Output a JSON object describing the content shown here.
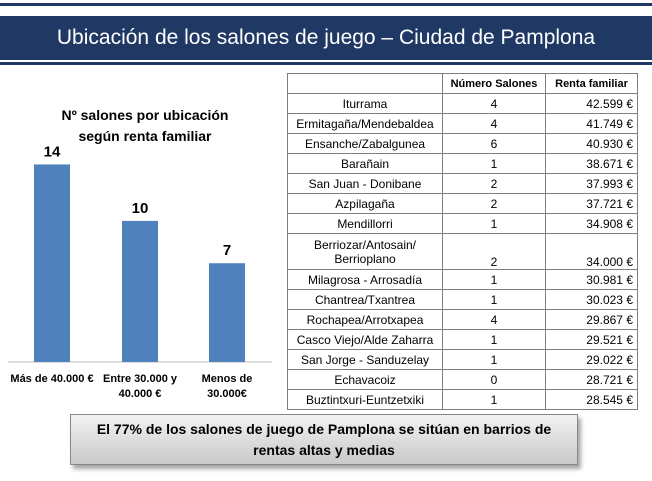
{
  "header": {
    "title": "Ubicación de los salones de juego – Ciudad de Pamplona"
  },
  "chart_data": {
    "type": "bar",
    "title": "Nº salones por ubicación según renta familiar",
    "categories": [
      "Más de 40.000 €",
      "Entre 30.000 y 40.000 €",
      "Menos de 30.000€"
    ],
    "values": [
      14,
      10,
      7
    ],
    "ylim": [
      0,
      16
    ],
    "xlabel": "",
    "ylabel": "",
    "color": "#4f81bd"
  },
  "table": {
    "headers": [
      "",
      "Número Salones",
      "Renta familiar"
    ],
    "rows": [
      [
        "Iturrama",
        "4",
        "42.599 €"
      ],
      [
        "Ermitagaña/Mendebaldea",
        "4",
        "41.749 €"
      ],
      [
        "Ensanche/Zabalgunea",
        "6",
        "40.930 €"
      ],
      [
        "Barañain",
        "1",
        "38.671 €"
      ],
      [
        "San Juan - Donibane",
        "2",
        "37.993 €"
      ],
      [
        "Azpilagaña",
        "2",
        "37.721 €"
      ],
      [
        "Mendillorri",
        "1",
        "34.908 €"
      ],
      [
        "Berriozar/Antosain/ Berrioplano",
        "2",
        "34.000 €"
      ],
      [
        "Milagrosa - Arrosadía",
        "1",
        "30.981 €"
      ],
      [
        "Chantrea/Txantrea",
        "1",
        "30.023 €"
      ],
      [
        "Rochapea/Arrotxapea",
        "4",
        "29.867 €"
      ],
      [
        "Casco Viejo/Alde Zaharra",
        "1",
        "29.521 €"
      ],
      [
        "San Jorge - Sanduzelay",
        "1",
        "29.022 €"
      ],
      [
        "Echavacoiz",
        "0",
        "28.721 €"
      ],
      [
        "Buztintxuri-Euntzetxiki",
        "1",
        "28.545 €"
      ]
    ]
  },
  "callout": {
    "text": "El 77% de los salones de juego de Pamplona se sitúan en barrios de rentas altas y medias"
  }
}
